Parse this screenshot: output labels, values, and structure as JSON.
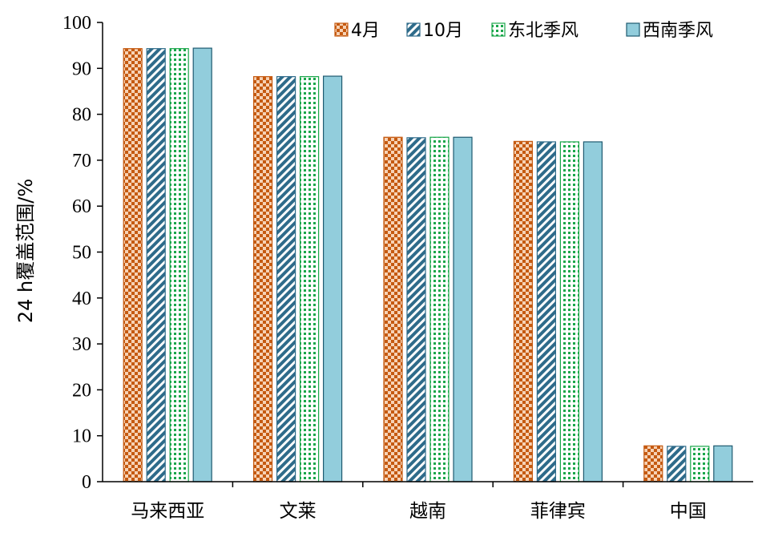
{
  "chart_data": {
    "type": "bar",
    "categories": [
      "马来西亚",
      "文莱",
      "越南",
      "菲律宾",
      "中国"
    ],
    "series": [
      {
        "name": "4月",
        "values": [
          94.3,
          88.2,
          75.0,
          74.1,
          7.8
        ],
        "color": "#c55a11",
        "pattern": "checker"
      },
      {
        "name": "10月",
        "values": [
          94.3,
          88.2,
          74.9,
          74.0,
          7.7
        ],
        "color": "#2e6b8a",
        "pattern": "diagonal"
      },
      {
        "name": "东北季风",
        "values": [
          94.3,
          88.2,
          75.0,
          74.0,
          7.7
        ],
        "color": "#1aa64a",
        "pattern": "dots"
      },
      {
        "name": "西南季风",
        "values": [
          94.4,
          88.3,
          75.0,
          74.0,
          7.8
        ],
        "color": "#92cddc",
        "pattern": "solid"
      }
    ],
    "ylabel": "24 h覆盖范围/%",
    "ylim": [
      0,
      100
    ],
    "yticks": [
      0,
      10,
      20,
      30,
      40,
      50,
      60,
      70,
      80,
      90,
      100
    ],
    "legend_position": "top-right",
    "grid": false
  }
}
